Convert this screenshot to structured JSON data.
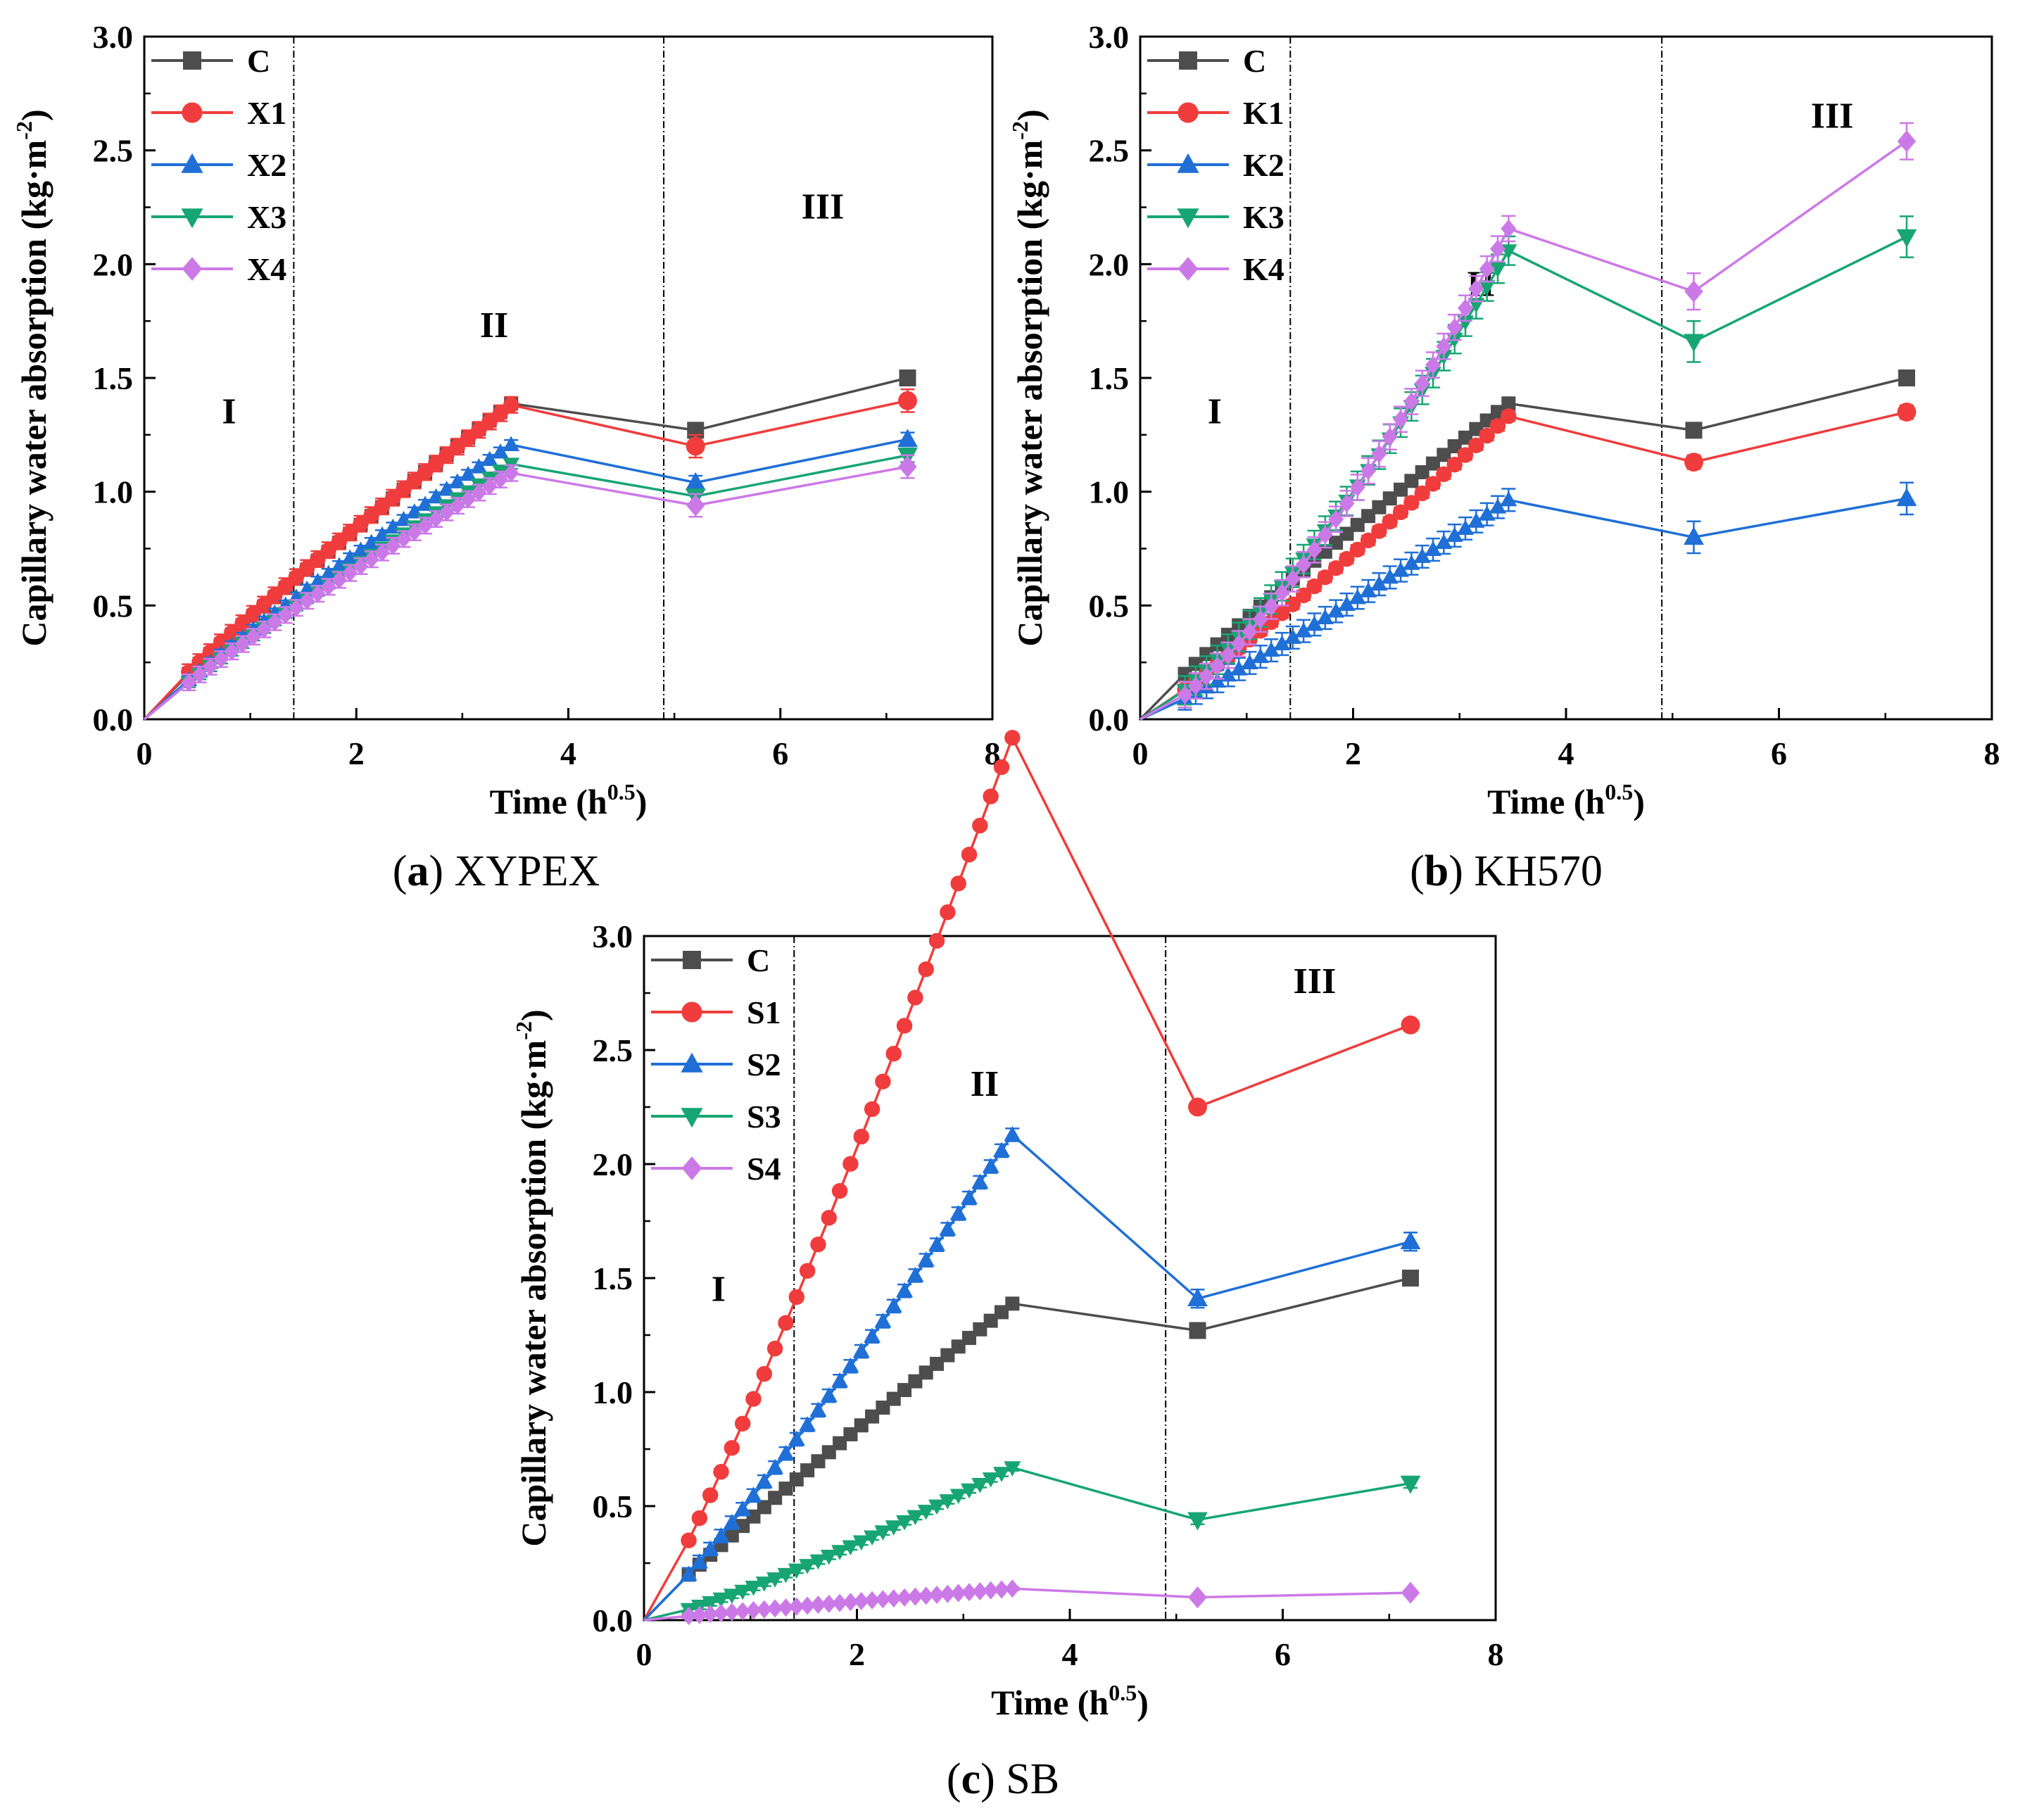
{
  "chart_data": [
    {
      "type": "line",
      "panel_letter": "a",
      "caption_text": "XYPEX",
      "xlabel": "Time (h",
      "xlabel_sup": "0.5",
      "xlabel_end": ")",
      "ylabel": "Capillary water absorption (kg·m",
      "ylabel_sup": "-2",
      "ylabel_end": ")",
      "xlim": [
        0,
        8
      ],
      "ylim": [
        0,
        3.0
      ],
      "xticks": [
        "0",
        "2",
        "4",
        "6",
        "8"
      ],
      "yticks": [
        "0.0",
        "0.5",
        "1.0",
        "1.5",
        "2.0",
        "2.5",
        "3.0"
      ],
      "region_dividers_x": [
        1.41,
        4.9
      ],
      "regions": [
        {
          "label": "I",
          "x": 0.8,
          "y": 1.3
        },
        {
          "label": "II",
          "x": 3.3,
          "y": 1.68
        },
        {
          "label": "III",
          "x": 6.4,
          "y": 2.2
        }
      ],
      "legend_position": "top-left",
      "series": [
        {
          "name": "C",
          "color": "#4d4d4d",
          "marker": "square",
          "a": 0.443,
          "b": 0.46,
          "end_points": [
            [
              5.2,
              1.27
            ],
            [
              7.2,
              1.5
            ]
          ],
          "err": 0.02
        },
        {
          "name": "X1",
          "color": "#f03c3c",
          "marker": "circle",
          "a": 0.452,
          "b": 0.45,
          "end_points": [
            [
              5.2,
              1.2
            ],
            [
              7.2,
              1.4
            ]
          ],
          "err": 0.05
        },
        {
          "name": "X2",
          "color": "#1f6fd6",
          "marker": "triangle-up",
          "a": 0.385,
          "b": 0.46,
          "end_points": [
            [
              5.2,
              1.04
            ],
            [
              7.2,
              1.23
            ]
          ],
          "err": 0.03
        },
        {
          "name": "X3",
          "color": "#17a573",
          "marker": "triangle-down",
          "a": 0.358,
          "b": 0.46,
          "end_points": [
            [
              5.2,
              0.98
            ],
            [
              7.2,
              1.16
            ]
          ],
          "err": 0.03
        },
        {
          "name": "X4",
          "color": "#cc79e8",
          "marker": "diamond",
          "a": 0.354,
          "b": 0.45,
          "end_points": [
            [
              5.2,
              0.94
            ],
            [
              7.2,
              1.11
            ]
          ],
          "err": 0.05
        }
      ]
    },
    {
      "type": "line",
      "panel_letter": "b",
      "caption_text": "KH570",
      "xlabel": "Time (h",
      "xlabel_sup": "0.5",
      "xlabel_end": ")",
      "ylabel": "Capillary water absorption (kg·m",
      "ylabel_sup": "-2",
      "ylabel_end": ")",
      "xlim": [
        0,
        8
      ],
      "ylim": [
        0,
        3.0
      ],
      "xticks": [
        "0",
        "2",
        "4",
        "6",
        "8"
      ],
      "yticks": [
        "0.0",
        "0.5",
        "1.0",
        "1.5",
        "2.0",
        "2.5",
        "3.0"
      ],
      "region_dividers_x": [
        1.41,
        4.9
      ],
      "regions": [
        {
          "label": "I",
          "x": 0.7,
          "y": 1.3
        },
        {
          "label": "II",
          "x": 3.2,
          "y": 1.86
        },
        {
          "label": "III",
          "x": 6.5,
          "y": 2.6
        }
      ],
      "legend_position": "top-left",
      "series": [
        {
          "name": "C",
          "color": "#4d4d4d",
          "marker": "square",
          "a": 0.443,
          "b": 0.46,
          "end_points": [
            [
              5.2,
              1.27
            ],
            [
              7.2,
              1.5
            ]
          ],
          "err": 0.02
        },
        {
          "name": "K1",
          "color": "#f03c3c",
          "marker": "circle",
          "a": 0.34,
          "b": 0.55,
          "end_points": [
            [
              5.2,
              1.13
            ],
            [
              7.2,
              1.35
            ]
          ],
          "err": 0.03
        },
        {
          "name": "K2",
          "color": "#1f6fd6",
          "marker": "triangle-up",
          "a": 0.24,
          "b": 0.56,
          "end_points": [
            [
              5.2,
              0.8
            ],
            [
              7.2,
              0.97
            ]
          ],
          "err": 0.07
        },
        {
          "name": "K3",
          "color": "#17a573",
          "marker": "triangle-down",
          "a": 0.4,
          "b": 0.66,
          "end_points": [
            [
              5.2,
              1.66
            ],
            [
              7.2,
              2.12
            ]
          ],
          "err": 0.09
        },
        {
          "name": "K4",
          "color": "#cc79e8",
          "marker": "diamond",
          "a": 0.37,
          "b": 0.71,
          "end_points": [
            [
              5.2,
              1.88
            ],
            [
              7.2,
              2.54
            ]
          ],
          "err": 0.08
        }
      ]
    },
    {
      "type": "line",
      "panel_letter": "c",
      "caption_text": "SB",
      "xlabel": "Time (h",
      "xlabel_sup": "0.5",
      "xlabel_end": ")",
      "ylabel": "Capillary water absorption (kg·m",
      "ylabel_sup": "-2",
      "ylabel_end": ")",
      "xlim": [
        0,
        8
      ],
      "ylim": [
        0,
        3.0
      ],
      "xticks": [
        "0",
        "2",
        "4",
        "6",
        "8"
      ],
      "yticks": [
        "0.0",
        "0.5",
        "1.0",
        "1.5",
        "2.0",
        "2.5",
        "3.0"
      ],
      "region_dividers_x": [
        1.41,
        4.9
      ],
      "regions": [
        {
          "label": "I",
          "x": 0.7,
          "y": 1.4
        },
        {
          "label": "II",
          "x": 3.2,
          "y": 2.3
        },
        {
          "label": "III",
          "x": 6.3,
          "y": 2.75
        }
      ],
      "legend_position": "top-left",
      "series": [
        {
          "name": "C",
          "color": "#4d4d4d",
          "marker": "square",
          "a": 0.443,
          "b": 0.46,
          "end_points": [
            [
              5.2,
              1.27
            ],
            [
              7.2,
              1.5
            ]
          ],
          "err": 0.02
        },
        {
          "name": "S1",
          "color": "#f03c3c",
          "marker": "circle",
          "a": 0.94,
          "b": 0.57,
          "end_points": [
            [
              5.2,
              2.25
            ],
            [
              7.2,
              2.61
            ]
          ],
          "err": 0.02
        },
        {
          "name": "S2",
          "color": "#1f6fd6",
          "marker": "triangle-up",
          "a": 0.53,
          "b": 0.56,
          "end_points": [
            [
              5.2,
              1.41
            ],
            [
              7.2,
              1.66
            ]
          ],
          "err": 0.04
        },
        {
          "name": "S3",
          "color": "#17a573",
          "marker": "triangle-down",
          "a": 0.14,
          "b": 0.63,
          "end_points": [
            [
              5.2,
              0.44
            ],
            [
              7.2,
              0.6
            ]
          ],
          "err": 0.02
        },
        {
          "name": "S4",
          "color": "#cc79e8",
          "marker": "diamond",
          "a": 0.042,
          "b": 0.48,
          "end_points": [
            [
              5.2,
              0.1
            ],
            [
              7.2,
              0.12
            ]
          ],
          "err": 0.01
        }
      ]
    }
  ]
}
